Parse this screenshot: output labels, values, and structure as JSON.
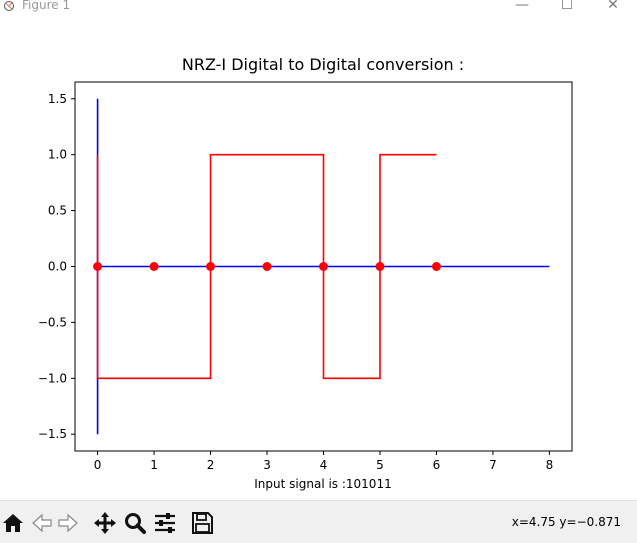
{
  "window": {
    "title": "Figure 1",
    "minimize_glyph": "—",
    "maximize_glyph": "☐",
    "close_glyph": "✕"
  },
  "chart_data": {
    "type": "line",
    "title": "NRZ-I Digital to Digital conversion :",
    "xlabel": "Input signal is :101011",
    "ylabel": "",
    "xlim": [
      -0.4,
      8.4
    ],
    "ylim": [
      -1.65,
      1.65
    ],
    "xticks": [
      0,
      1,
      2,
      3,
      4,
      5,
      6,
      7,
      8
    ],
    "yticks": [
      1.5,
      1.0,
      0.5,
      0.0,
      -0.5,
      -1.0,
      -1.5
    ],
    "ytick_labels": [
      "1.5",
      "1.0",
      "0.5",
      "0.0",
      "−0.5",
      "−1.0",
      "−1.5"
    ],
    "series": [
      {
        "color": "#0000ff",
        "kind": "vertical-axis-line",
        "x": [
          0,
          0
        ],
        "y": [
          -1.5,
          1.5
        ]
      },
      {
        "color": "#0000ff",
        "kind": "horizontal-axis-line",
        "x": [
          0,
          8
        ],
        "y": [
          0,
          0
        ]
      },
      {
        "color": "#ff0000",
        "kind": "signal-step",
        "x": [
          0,
          0,
          2,
          2,
          4,
          4,
          5,
          5,
          6
        ],
        "y": [
          1,
          -1,
          -1,
          1,
          1,
          -1,
          -1,
          1,
          1
        ]
      },
      {
        "color": "#ff0000",
        "kind": "markers",
        "x": [
          0,
          1,
          2,
          3,
          4,
          5,
          6
        ],
        "y": [
          0,
          0,
          0,
          0,
          0,
          0,
          0
        ]
      }
    ],
    "grid": false,
    "legend": "none"
  },
  "toolbar": {
    "icons": [
      "home-icon",
      "back-arrow-icon",
      "forward-arrow-icon",
      "pan-icon",
      "zoom-icon",
      "configure-subplots-icon",
      "save-icon"
    ],
    "status": "x=4.75 y=−0.871"
  }
}
